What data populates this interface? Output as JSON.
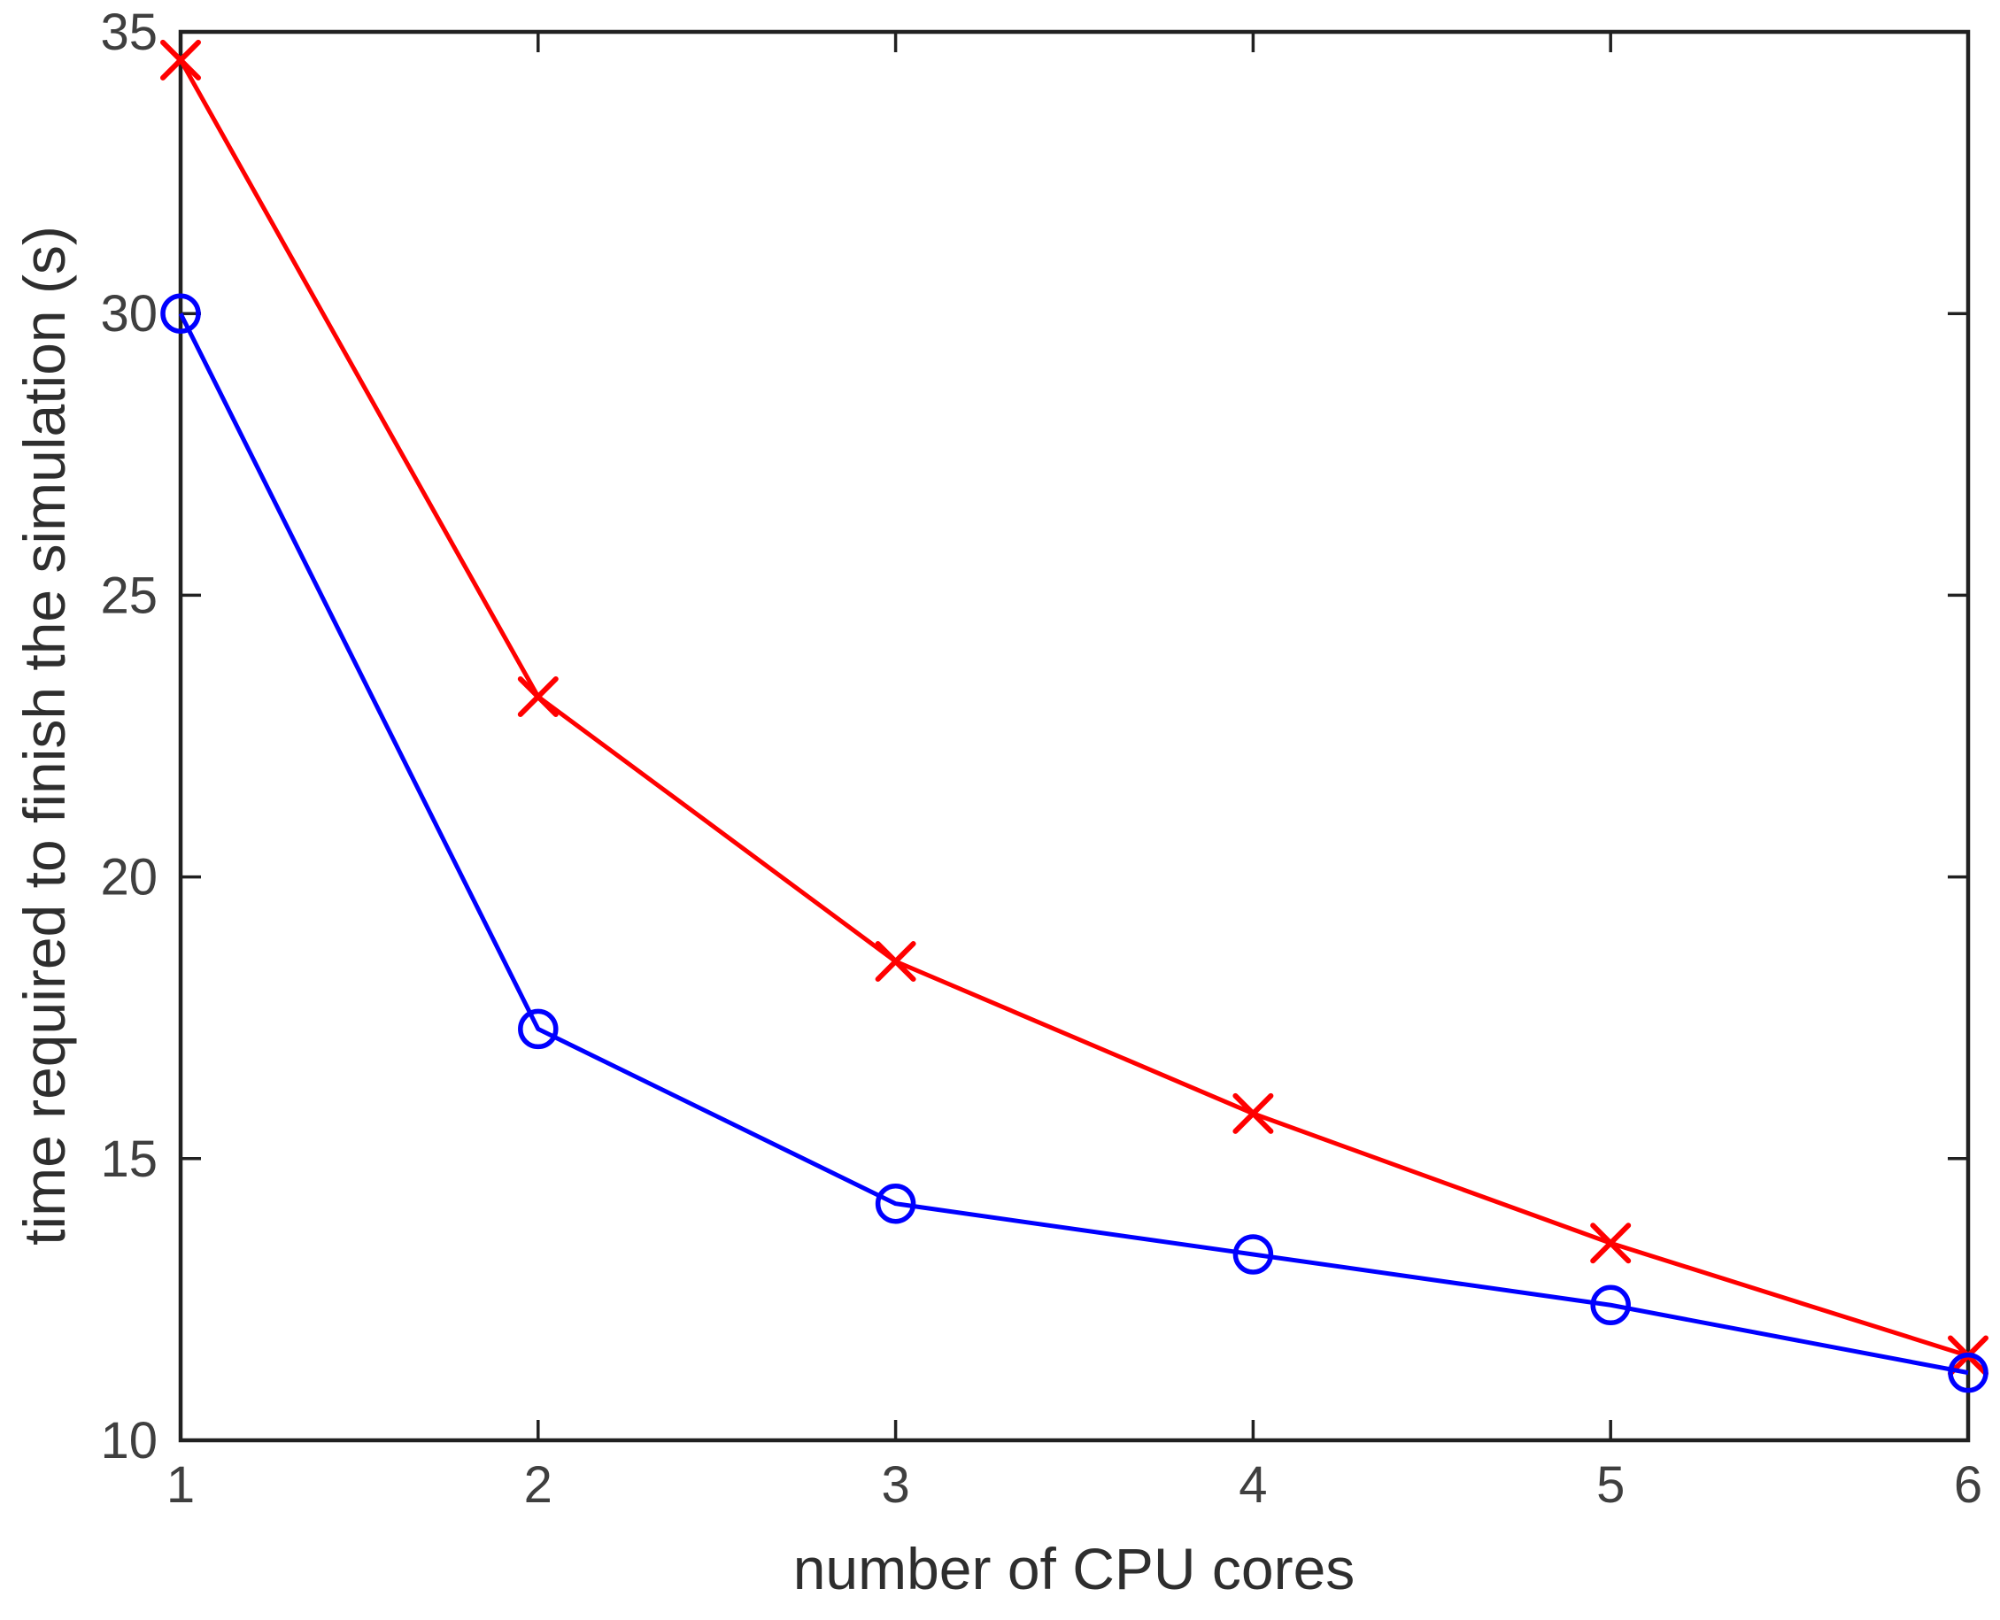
{
  "chart_data": {
    "type": "line",
    "title": "",
    "xlabel": "number of CPU cores",
    "ylabel": "time required to finish the simulation (s)",
    "x": [
      1,
      2,
      3,
      4,
      5,
      6
    ],
    "series": [
      {
        "name": "red-x-series",
        "color": "#ff0000",
        "marker": "x",
        "values": [
          34.5,
          23.2,
          18.5,
          15.8,
          13.5,
          11.5
        ]
      },
      {
        "name": "blue-circle-series",
        "color": "#0000ff",
        "marker": "circle",
        "values": [
          30.0,
          17.3,
          14.2,
          13.3,
          12.4,
          11.2
        ]
      }
    ],
    "xlim": [
      1,
      6
    ],
    "ylim": [
      10,
      35
    ],
    "xticks": [
      "1",
      "2",
      "3",
      "4",
      "5",
      "6"
    ],
    "yticks": [
      "10",
      "15",
      "20",
      "25",
      "30",
      "35"
    ],
    "grid": false,
    "legend": null,
    "axis_color": "#212121",
    "tick_label_color": "#3f3f3f",
    "label_color": "#2e2e2e"
  }
}
